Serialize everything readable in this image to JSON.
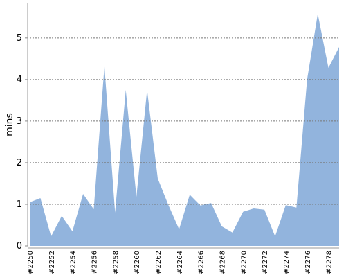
{
  "chart_data": {
    "type": "area",
    "y_label": "mins",
    "categories": [
      "#2250",
      null,
      "#2252",
      null,
      "#2254",
      null,
      "#2256",
      null,
      "#2258",
      null,
      "#2260",
      null,
      "#2262",
      null,
      "#2264",
      null,
      "#2266",
      null,
      "#2268",
      null,
      "#2270",
      null,
      "#2272",
      null,
      "#2274",
      null,
      "#2276",
      null,
      "#2278",
      null
    ],
    "values": [
      1.05,
      1.15,
      0.23,
      0.72,
      0.35,
      1.25,
      0.88,
      4.33,
      0.8,
      3.75,
      1.18,
      3.75,
      1.62,
      0.98,
      0.4,
      1.23,
      0.97,
      1.03,
      0.47,
      0.32,
      0.82,
      0.9,
      0.87,
      0.23,
      0.98,
      0.92,
      4.0,
      5.58,
      4.28,
      4.78
    ],
    "color": "#92b4dd",
    "ylim": [
      0,
      5.83
    ],
    "yticks": [
      0,
      1,
      2,
      3,
      4,
      5
    ],
    "grid": true
  }
}
